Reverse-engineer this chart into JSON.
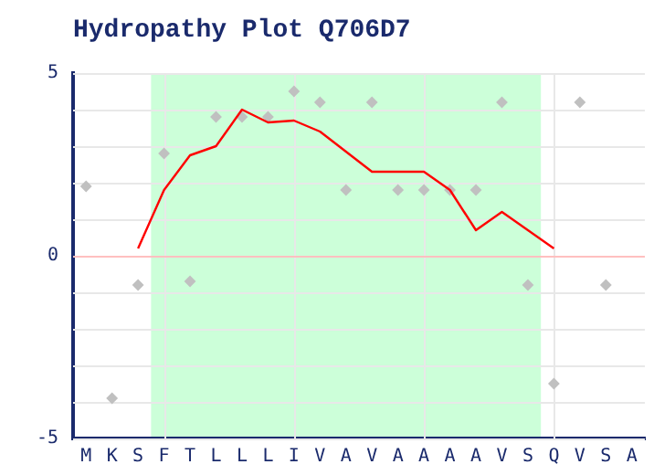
{
  "chart_data": {
    "type": "scatter",
    "title": "Hydropathy Plot Q706D7",
    "categories": [
      "M",
      "K",
      "S",
      "F",
      "T",
      "L",
      "L",
      "L",
      "I",
      "V",
      "A",
      "V",
      "A",
      "A",
      "A",
      "A",
      "V",
      "S",
      "Q",
      "V",
      "S",
      "A"
    ],
    "ylim": [
      -5,
      5
    ],
    "yticks": [
      5,
      {
        "value": 4,
        "label": null
      },
      {
        "value": 3,
        "label": null
      },
      {
        "value": 2,
        "label": null
      },
      {
        "value": 1,
        "label": null
      },
      0,
      {
        "value": -1,
        "label": null
      },
      {
        "value": -2,
        "label": null
      },
      {
        "value": -3,
        "label": null
      },
      {
        "value": -4,
        "label": null
      },
      -5
    ],
    "grid": true,
    "legend": false,
    "bands": [
      {
        "axis": "x",
        "from": "S",
        "to": "Q",
        "color": "#ccffd9"
      }
    ],
    "ref_lines": [
      {
        "axis": "y",
        "value": 0,
        "color": "#ffc0c0"
      }
    ],
    "series": [
      {
        "type": "scatter",
        "color": "#c0c0c0",
        "marker": "diamond",
        "values": [
          1.9,
          -3.9,
          -0.8,
          2.8,
          -0.7,
          3.8,
          3.8,
          3.8,
          4.5,
          4.2,
          1.8,
          4.2,
          1.8,
          1.8,
          1.8,
          1.8,
          4.2,
          -0.8,
          -3.5,
          4.2,
          -0.8,
          null
        ]
      },
      {
        "type": "line",
        "color": "#ff0000",
        "marker": "none",
        "values": [
          null,
          null,
          0.2,
          1.8,
          2.75,
          3.0,
          4.0,
          3.65,
          3.7,
          3.4,
          2.85,
          2.3,
          2.3,
          2.3,
          1.8,
          0.7,
          1.2,
          0.7,
          0.2,
          null,
          null,
          null
        ]
      }
    ]
  }
}
